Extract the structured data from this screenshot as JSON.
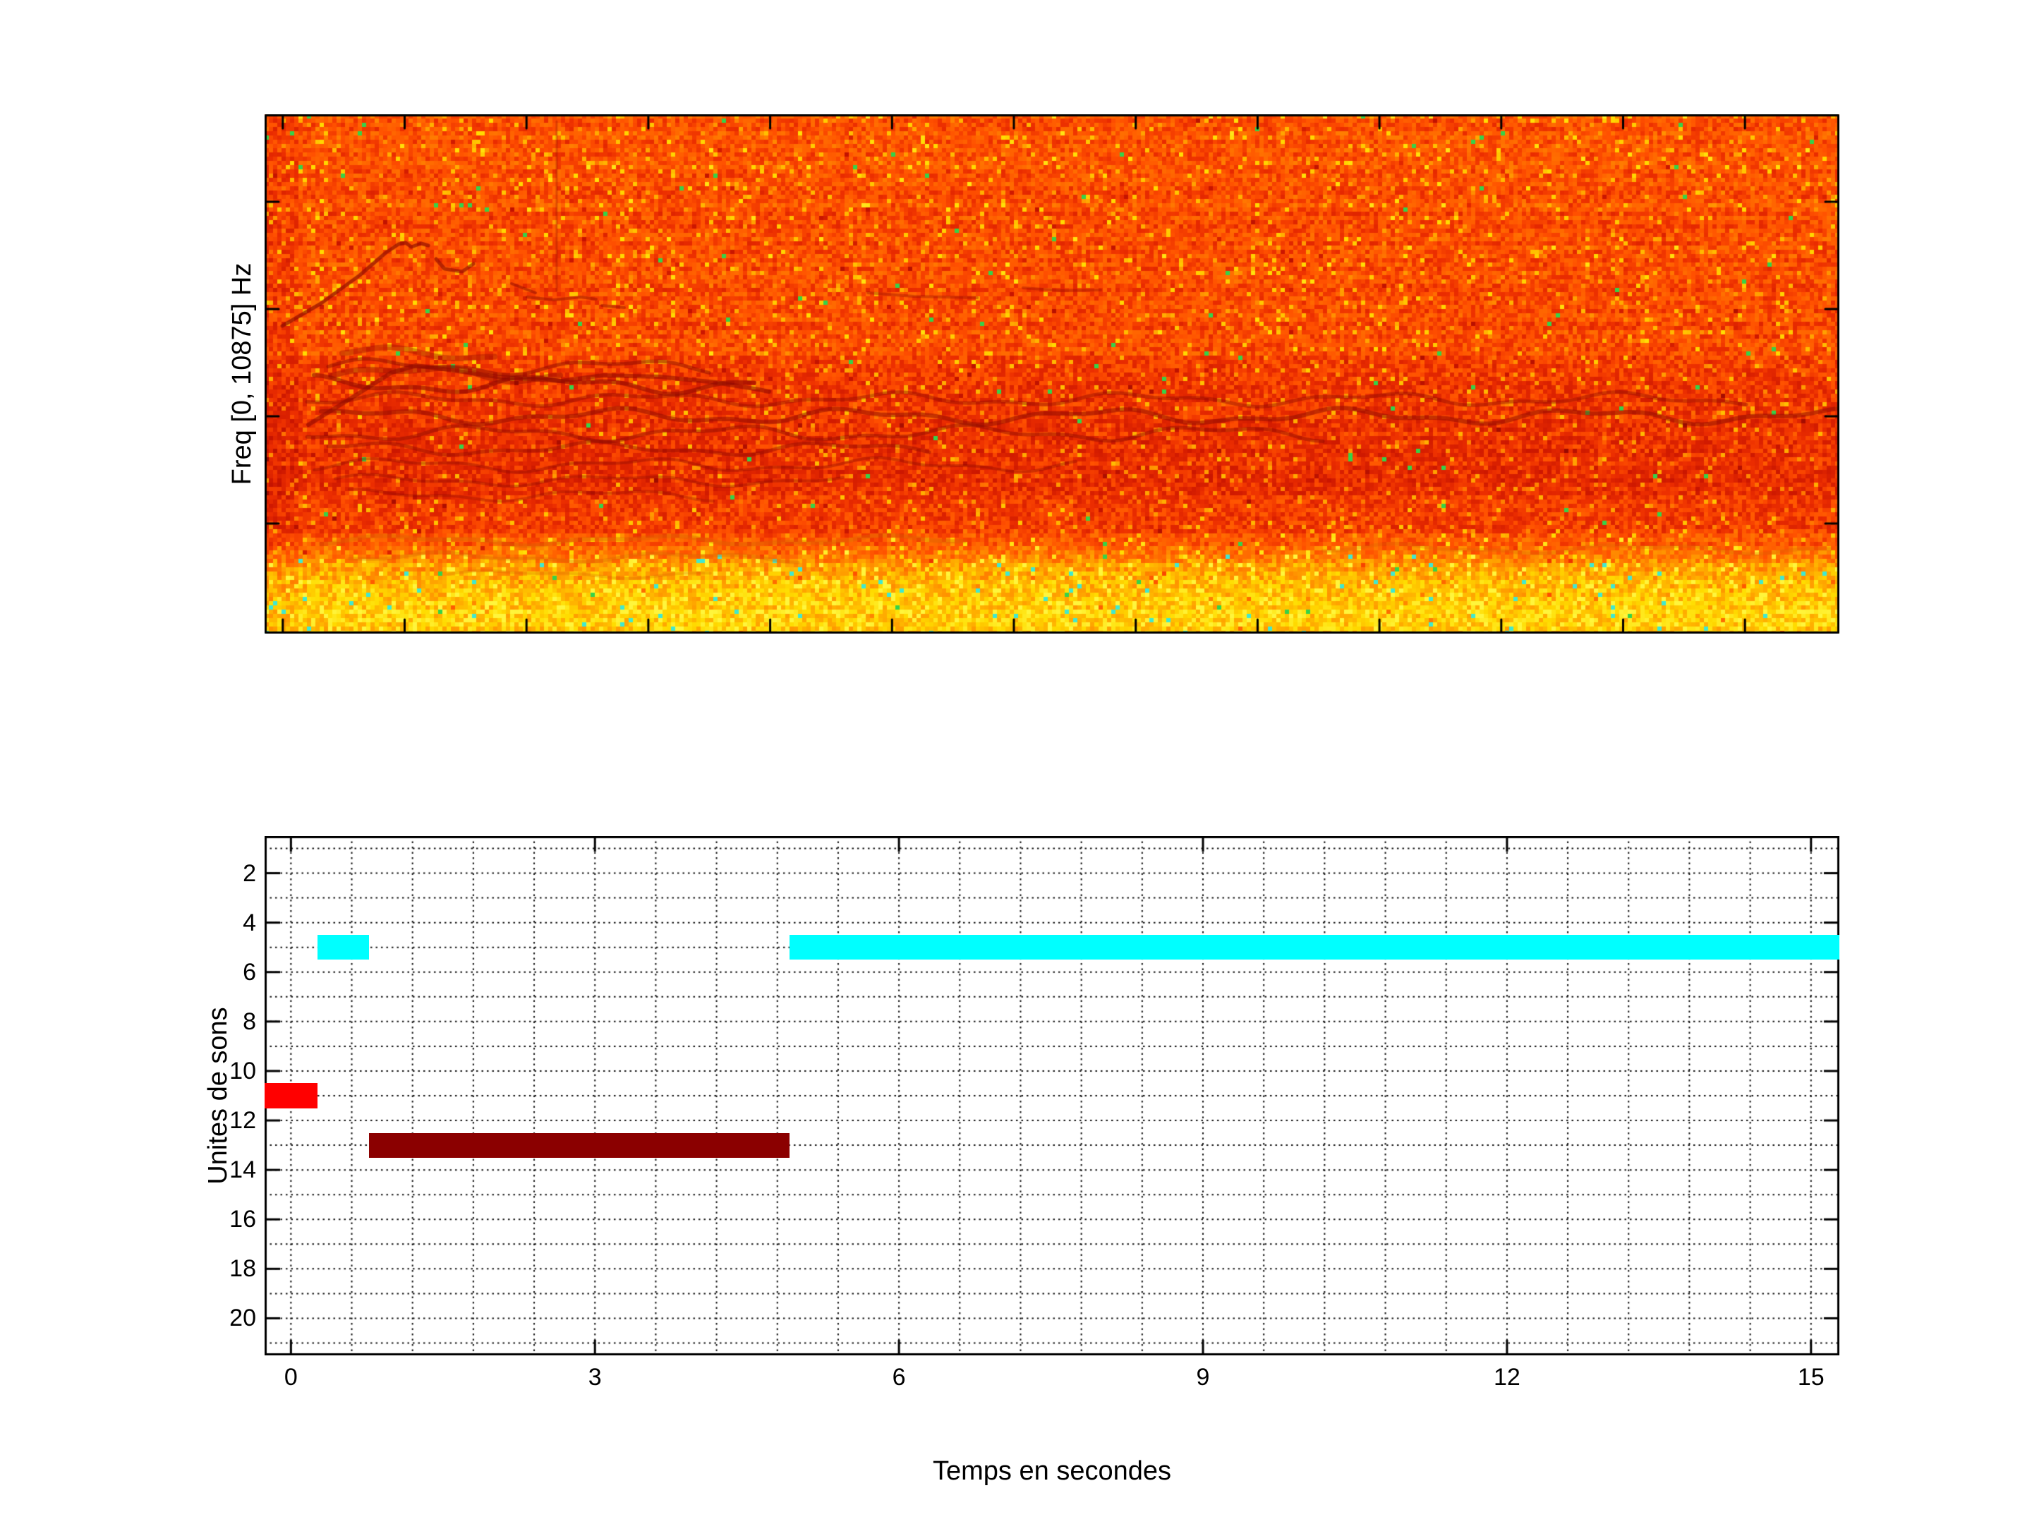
{
  "chart_data": [
    {
      "type": "heatmap",
      "role": "spectrogram",
      "title": "",
      "xlabel": "",
      "ylabel": "Freq [0, 10875] Hz",
      "freq_axis_hz": [
        0,
        10875
      ],
      "colormap": "hot (dark-red / red / orange / yellow)",
      "legend": "none",
      "tick_labels": "none (unlabeled tick marks on all four edges)",
      "content_notes": "dense orange-red noise; bright yellow high-energy band at lowest frequencies; dark wavy harmonic contour lines in the lower-middle band (strongest on the left half, one long contour crossing most of the width); a rising dark chirp contour near the start in the upper-left; small dark squiggle fragments in the upper area; faint thin vertical dark line near the start"
    },
    {
      "type": "bar",
      "role": "sound-unit-timeline",
      "orientation": "horizontal-segments",
      "title": "",
      "xlabel": "Temps en secondes",
      "ylabel": "Unites de sons",
      "xlim": [
        -0.26,
        15.28
      ],
      "ylim": [
        0.5,
        21.5
      ],
      "y_axis_reversed": true,
      "xticks": [
        0,
        3,
        6,
        9,
        12,
        15
      ],
      "yticks": [
        2,
        4,
        6,
        8,
        10,
        12,
        14,
        16,
        18,
        20
      ],
      "x_minor_grid_step": 0.6,
      "y_minor_grid_step": 1,
      "grid_style": "dotted",
      "bar_thickness_units": 1,
      "segments": [
        {
          "unit": 11,
          "t_start": -0.26,
          "t_end": 0.26,
          "color": "#ff0000",
          "clipped_left": true
        },
        {
          "unit": 5,
          "t_start": 0.26,
          "t_end": 0.77,
          "color": "#00ffff"
        },
        {
          "unit": 13,
          "t_start": 0.77,
          "t_end": 4.92,
          "color": "#8b0000"
        },
        {
          "unit": 5,
          "t_start": 4.92,
          "t_end": 15.28,
          "color": "#00ffff",
          "clipped_right": true
        }
      ]
    }
  ],
  "colors": {
    "axis": "#000000",
    "grid": "#111111",
    "spectrogram_top": "#ff5a00",
    "spectrogram_mid": "#e63000",
    "spectrogram_low_band": "#ffdc00",
    "harmonic_line": "#8a0a00",
    "segment_red": "#ff0000",
    "segment_cyan": "#00ffff",
    "segment_darkred": "#8b0000"
  }
}
